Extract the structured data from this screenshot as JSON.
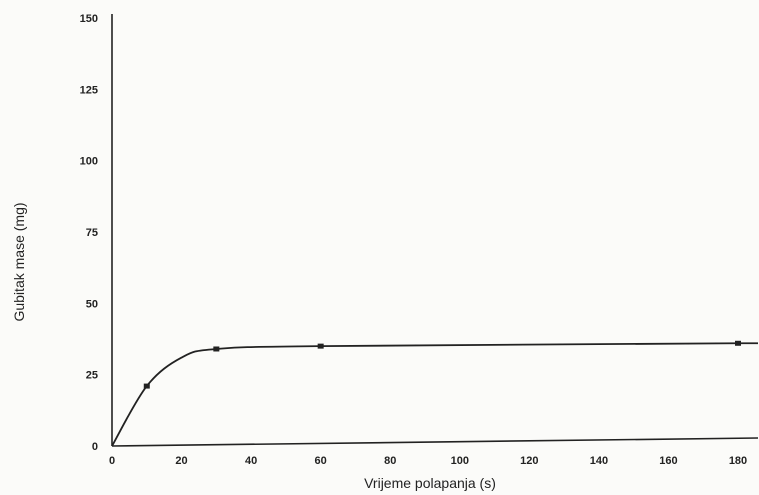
{
  "chart_data": {
    "type": "line",
    "title": "",
    "xlabel": "Vrijeme polapanja (s)",
    "ylabel": "Gubitak mase (mg)",
    "xlim": [
      0,
      180
    ],
    "ylim": [
      0,
      150
    ],
    "x_ticks": [
      0,
      20,
      40,
      60,
      80,
      100,
      120,
      140,
      160,
      180
    ],
    "y_ticks": [
      0,
      25,
      50,
      75,
      100,
      125,
      150
    ],
    "x_tick_labels": [
      "0",
      "20",
      "40",
      "60",
      "80",
      "100",
      "120",
      "140",
      "160",
      "180"
    ],
    "y_tick_labels": [
      "0",
      "25",
      "50",
      75,
      "100",
      "125",
      "150"
    ],
    "grid": false,
    "legend": "none",
    "series": [
      {
        "x": [
          0,
          10,
          20,
          30,
          60,
          180
        ],
        "y": [
          0,
          21,
          31,
          34,
          35,
          36
        ],
        "markers_at": [
          10,
          30,
          60,
          180
        ],
        "color": "#222222"
      }
    ]
  }
}
